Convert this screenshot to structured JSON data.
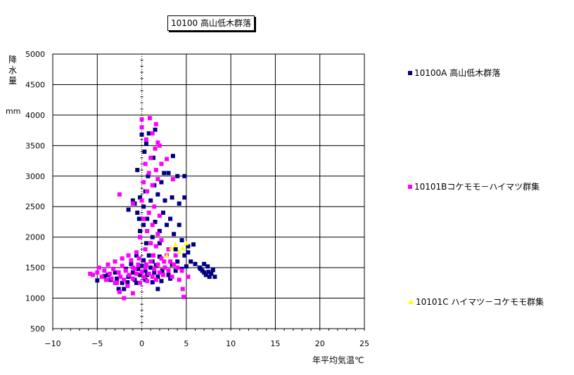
{
  "chart_data": {
    "type": "scatter",
    "title": "10100 高山低木群落",
    "ylabel": "降水量",
    "ylabel_unit": "mm",
    "xlabel": "年平均気温℃",
    "xlim": [
      -10,
      25
    ],
    "ylim": [
      500,
      5000
    ],
    "xticks": [
      -10,
      -5,
      0,
      5,
      10,
      15,
      20,
      25
    ],
    "yticks": [
      500,
      1000,
      1500,
      2000,
      2500,
      3000,
      3500,
      4000,
      4500,
      5000
    ],
    "grid": true,
    "legend_position": "right",
    "series": [
      {
        "name": "10100A 高山低木群落",
        "color": "#000080",
        "marker": "square",
        "points": [
          [
            -5.0,
            1290
          ],
          [
            -4.2,
            1360
          ],
          [
            -3.5,
            1300
          ],
          [
            -3.0,
            1420
          ],
          [
            -2.6,
            1150
          ],
          [
            -2.2,
            1250
          ],
          [
            -1.8,
            1480
          ],
          [
            -1.5,
            1350
          ],
          [
            -1.2,
            1560
          ],
          [
            -1.0,
            1420
          ],
          [
            -0.8,
            1300
          ],
          [
            -0.6,
            1700
          ],
          [
            -0.4,
            1480
          ],
          [
            -0.2,
            1380
          ],
          [
            0.0,
            1530
          ],
          [
            0.2,
            1620
          ],
          [
            0.4,
            1450
          ],
          [
            0.6,
            1380
          ],
          [
            0.8,
            1700
          ],
          [
            1.0,
            1500
          ],
          [
            1.2,
            1600
          ],
          [
            1.4,
            1420
          ],
          [
            1.6,
            1540
          ],
          [
            1.8,
            1350
          ],
          [
            2.0,
            1680
          ],
          [
            2.3,
            1450
          ],
          [
            2.6,
            1500
          ],
          [
            3.0,
            1380
          ],
          [
            3.4,
            1550
          ],
          [
            3.8,
            1450
          ],
          [
            4.0,
            1600
          ],
          [
            0.5,
            1900
          ],
          [
            1.2,
            2000
          ],
          [
            2.0,
            2100
          ],
          [
            2.8,
            2200
          ],
          [
            3.6,
            2050
          ],
          [
            4.5,
            1950
          ],
          [
            5.2,
            1750
          ],
          [
            5.8,
            1880
          ],
          [
            -0.2,
            2100
          ],
          [
            0.6,
            2300
          ],
          [
            1.5,
            2250
          ],
          [
            2.4,
            2400
          ],
          [
            3.2,
            2300
          ],
          [
            4.2,
            2200
          ],
          [
            -0.5,
            2400
          ],
          [
            0.2,
            2500
          ],
          [
            1.0,
            2600
          ],
          [
            1.8,
            2700
          ],
          [
            2.6,
            2600
          ],
          [
            3.4,
            2650
          ],
          [
            4.2,
            2550
          ],
          [
            4.8,
            2650
          ],
          [
            -1.0,
            2600
          ],
          [
            0.4,
            2750
          ],
          [
            1.4,
            2850
          ],
          [
            2.2,
            2900
          ],
          [
            3.0,
            3050
          ],
          [
            4.0,
            3000
          ],
          [
            4.8,
            3000
          ],
          [
            -0.2,
            2650
          ],
          [
            0.7,
            3000
          ],
          [
            1.3,
            3300
          ],
          [
            2.5,
            3050
          ],
          [
            3.5,
            3330
          ],
          [
            0.3,
            3400
          ],
          [
            0.5,
            3530
          ],
          [
            0.0,
            3680
          ],
          [
            0.8,
            3700
          ],
          [
            1.5,
            3760
          ],
          [
            -0.5,
            3100
          ],
          [
            -0.8,
            2550
          ],
          [
            -1.5,
            2450
          ],
          [
            -0.3,
            2300
          ],
          [
            0.2,
            2200
          ],
          [
            6.0,
            1560
          ],
          [
            6.5,
            1500
          ],
          [
            6.8,
            1450
          ],
          [
            7.0,
            1420
          ],
          [
            7.2,
            1380
          ],
          [
            7.4,
            1520
          ],
          [
            7.6,
            1350
          ],
          [
            7.8,
            1400
          ],
          [
            8.0,
            1460
          ],
          [
            8.2,
            1350
          ],
          [
            7.0,
            1560
          ],
          [
            6.6,
            1480
          ],
          [
            7.5,
            1430
          ],
          [
            5.5,
            1600
          ],
          [
            5.0,
            1520
          ],
          [
            4.5,
            1480
          ],
          [
            4.8,
            1700
          ],
          [
            5.2,
            1850
          ],
          [
            3.8,
            1800
          ],
          [
            2.0,
            1900
          ],
          [
            -3.8,
            1380
          ],
          [
            -2.8,
            1320
          ],
          [
            -1.6,
            1260
          ],
          [
            -0.6,
            1250
          ],
          [
            0.4,
            1300
          ],
          [
            1.2,
            1260
          ],
          [
            2.2,
            1280
          ],
          [
            3.2,
            1320
          ],
          [
            -2.0,
            1150
          ],
          [
            1.8,
            1150
          ]
        ]
      },
      {
        "name": "10101Bコケモモ－ハイマツ群集",
        "color": "#FF00FF",
        "marker": "square",
        "points": [
          [
            -5.8,
            1400
          ],
          [
            -5.5,
            1380
          ],
          [
            -5.0,
            1420
          ],
          [
            -4.8,
            1500
          ],
          [
            -4.5,
            1350
          ],
          [
            -4.2,
            1450
          ],
          [
            -4.0,
            1300
          ],
          [
            -3.8,
            1550
          ],
          [
            -3.6,
            1400
          ],
          [
            -3.4,
            1320
          ],
          [
            -3.2,
            1480
          ],
          [
            -3.0,
            1600
          ],
          [
            -2.8,
            1250
          ],
          [
            -2.6,
            1420
          ],
          [
            -2.4,
            1350
          ],
          [
            -2.2,
            1530
          ],
          [
            -2.0,
            1300
          ],
          [
            -1.8,
            1450
          ],
          [
            -1.6,
            1200
          ],
          [
            -1.4,
            1380
          ],
          [
            -1.2,
            1620
          ],
          [
            -1.0,
            1320
          ],
          [
            -0.8,
            1480
          ],
          [
            -0.6,
            1400
          ],
          [
            -0.4,
            1550
          ],
          [
            -0.2,
            1250
          ],
          [
            0.0,
            1430
          ],
          [
            0.2,
            1350
          ],
          [
            0.4,
            1500
          ],
          [
            0.6,
            1280
          ],
          [
            0.8,
            1400
          ],
          [
            1.0,
            1600
          ],
          [
            1.2,
            1350
          ],
          [
            1.4,
            1480
          ],
          [
            1.6,
            1300
          ],
          [
            1.8,
            1550
          ],
          [
            2.0,
            1420
          ],
          [
            2.2,
            1650
          ],
          [
            2.4,
            1380
          ],
          [
            2.6,
            1500
          ],
          [
            2.8,
            1700
          ],
          [
            3.0,
            1450
          ],
          [
            3.2,
            1600
          ],
          [
            3.4,
            1350
          ],
          [
            3.6,
            1550
          ],
          [
            3.8,
            1700
          ],
          [
            4.0,
            1500
          ],
          [
            4.2,
            1300
          ],
          [
            4.5,
            1450
          ],
          [
            4.6,
            1150
          ],
          [
            4.7,
            1020
          ],
          [
            5.2,
            1350
          ],
          [
            -2.0,
            1000
          ],
          [
            -2.5,
            1100
          ],
          [
            -1.0,
            1080
          ],
          [
            -3.0,
            1250
          ],
          [
            -1.5,
            1700
          ],
          [
            -2.2,
            1650
          ],
          [
            -0.6,
            1750
          ],
          [
            0.4,
            1800
          ],
          [
            1.0,
            1900
          ],
          [
            1.6,
            1850
          ],
          [
            2.2,
            1950
          ],
          [
            3.0,
            1800
          ],
          [
            -0.2,
            2000
          ],
          [
            0.6,
            2100
          ],
          [
            1.2,
            2200
          ],
          [
            1.8,
            2050
          ],
          [
            0.2,
            2300
          ],
          [
            0.8,
            2400
          ],
          [
            1.4,
            2500
          ],
          [
            2.0,
            2350
          ],
          [
            -1.0,
            2550
          ],
          [
            -2.5,
            2700
          ],
          [
            0.0,
            2600
          ],
          [
            0.6,
            2750
          ],
          [
            1.2,
            2850
          ],
          [
            1.8,
            2950
          ],
          [
            0.2,
            2900
          ],
          [
            0.8,
            3050
          ],
          [
            1.6,
            3100
          ],
          [
            2.2,
            3200
          ],
          [
            2.8,
            3280
          ],
          [
            3.5,
            2950
          ],
          [
            0.4,
            3200
          ],
          [
            1.0,
            3300
          ],
          [
            1.5,
            3450
          ],
          [
            2.0,
            3500
          ],
          [
            0.5,
            3600
          ],
          [
            1.2,
            3700
          ],
          [
            1.8,
            3550
          ],
          [
            0.0,
            3800
          ],
          [
            0.9,
            3950
          ],
          [
            0.0,
            3930
          ],
          [
            1.6,
            3850
          ],
          [
            -1.0,
            1500
          ],
          [
            -0.3,
            1650
          ],
          [
            0.5,
            1550
          ],
          [
            1.3,
            1700
          ],
          [
            2.5,
            1600
          ]
        ]
      },
      {
        "name": "10101C ハイマツ－コケモモ群集",
        "color": "#FFFF00",
        "marker": "triangle",
        "points": [
          [
            2.8,
            1700
          ],
          [
            3.3,
            1820
          ],
          [
            3.8,
            1880
          ],
          [
            4.2,
            1760
          ],
          [
            4.6,
            1820
          ],
          [
            5.0,
            1900
          ]
        ]
      }
    ]
  }
}
